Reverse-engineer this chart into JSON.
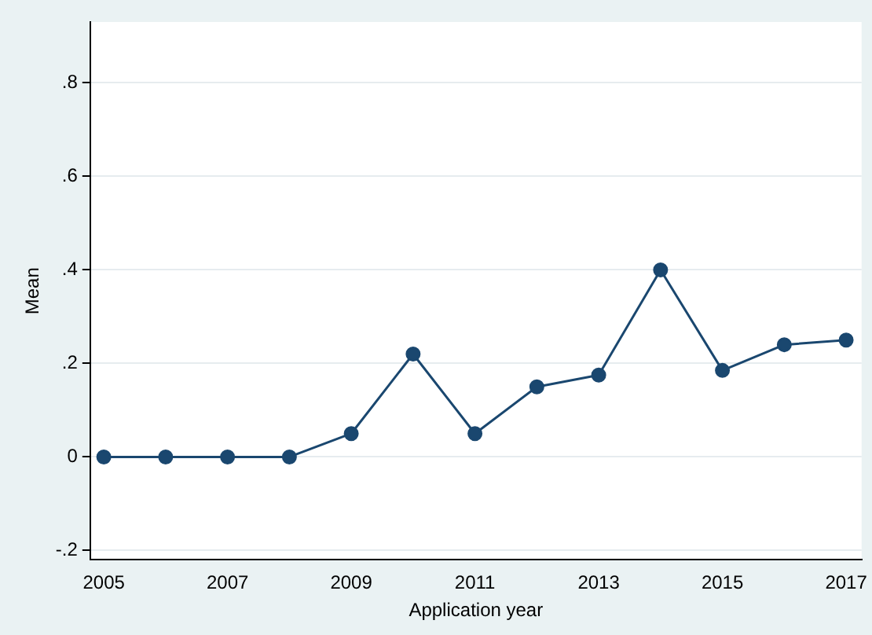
{
  "chart_data": {
    "type": "line",
    "xlabel": "Application year",
    "ylabel": "Mean",
    "x": [
      2005,
      2006,
      2007,
      2008,
      2009,
      2010,
      2011,
      2012,
      2013,
      2014,
      2015,
      2016,
      2017
    ],
    "series": [
      {
        "color": "#1a476f",
        "values": [
          0,
          0,
          0,
          0,
          0.05,
          0.22,
          0.05,
          0.15,
          0.175,
          0.4,
          0.185,
          0.24,
          0.25
        ]
      }
    ],
    "xlim": [
      2004.78,
      2017.25
    ],
    "xticks": [
      2005,
      2007,
      2009,
      2011,
      2013,
      2015,
      2017
    ],
    "ylim": [
      -0.22,
      0.93
    ],
    "yticks": [
      {
        "value": -0.2,
        "label": "-.2"
      },
      0,
      {
        "value": 0.2,
        "label": ".2"
      },
      {
        "value": 0.4,
        "label": ".4"
      },
      {
        "value": 0.6,
        "label": ".6"
      },
      {
        "value": 0.8,
        "label": ".8"
      }
    ],
    "grid": "y",
    "legend": false,
    "marker": "circle",
    "line_style": "solid"
  }
}
